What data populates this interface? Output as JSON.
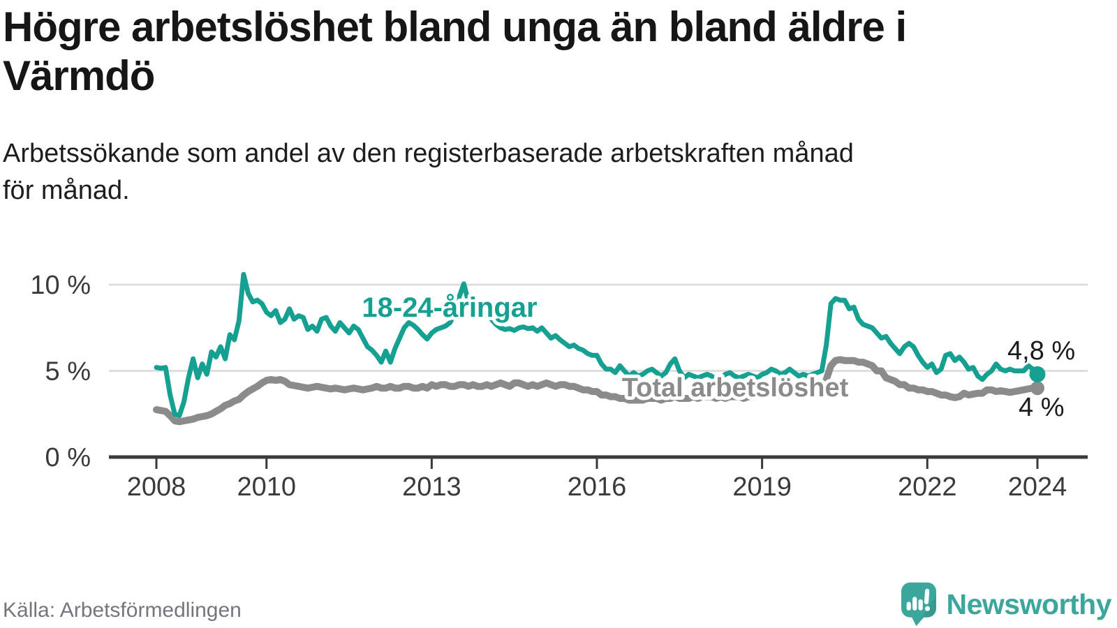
{
  "header": {
    "title_line1": "Högre arbetslöshet bland unga än bland äldre i",
    "title_line2": "Värmdö",
    "subtitle_line1": "Arbetssökande som andel av den registerbaserade arbetskraften månad",
    "subtitle_line2": "för månad."
  },
  "footer": {
    "source_label": "Källa: Arbetsförmedlingen",
    "brand_name": "Newsworthy",
    "brand_icon": "newsworthy-speech-bubble-bar-chart-icon",
    "brand_color": "#3ba69c"
  },
  "chart_data": {
    "type": "line",
    "title": "Högre arbetslöshet bland unga än bland äldre i Värmdö",
    "subtitle": "Arbetssökande som andel av den registerbaserade arbetskraften månad för månad.",
    "unit": "%",
    "x_start_year": 2008,
    "points_per_year": 12,
    "x_end": "2024-01",
    "ylim": [
      0,
      10.8
    ],
    "grid": "horizontal-only",
    "legend_position": "inline-labels",
    "x_ticks": [
      {
        "year": 2008,
        "label": "2008"
      },
      {
        "year": 2010,
        "label": "2010"
      },
      {
        "year": 2013,
        "label": "2013"
      },
      {
        "year": 2016,
        "label": "2016"
      },
      {
        "year": 2019,
        "label": "2019"
      },
      {
        "year": 2022,
        "label": "2022"
      },
      {
        "year": 2024,
        "label": "2024"
      }
    ],
    "y_ticks": [
      {
        "value": 10,
        "label": "10 %"
      },
      {
        "value": 5,
        "label": "5 %"
      },
      {
        "value": 0,
        "label": "0 %"
      }
    ],
    "series": [
      {
        "name": "18-24-åringar",
        "color": "#16a091",
        "end_label": "4,8 %",
        "end_value": 4.8,
        "values": [
          5.2,
          5.15,
          5.2,
          3.6,
          2.5,
          2.4,
          3.2,
          4.6,
          5.7,
          4.6,
          5.4,
          4.8,
          6.1,
          5.8,
          6.4,
          5.7,
          7.1,
          6.8,
          7.9,
          10.6,
          9.5,
          9.0,
          9.1,
          8.9,
          8.4,
          8.2,
          8.5,
          7.8,
          8.0,
          8.6,
          8.0,
          8.2,
          8.1,
          7.4,
          7.6,
          7.3,
          8.0,
          8.1,
          7.6,
          7.3,
          7.8,
          7.5,
          7.2,
          7.6,
          7.4,
          6.9,
          6.4,
          6.2,
          5.9,
          5.5,
          6.15,
          5.5,
          6.3,
          6.9,
          7.5,
          7.8,
          7.65,
          7.4,
          7.1,
          6.85,
          7.2,
          7.4,
          7.5,
          7.6,
          7.8,
          8.3,
          9.3,
          10.05,
          9.0,
          8.7,
          9.0,
          8.7,
          8.4,
          8.0,
          7.7,
          7.5,
          7.4,
          7.45,
          7.35,
          7.5,
          7.55,
          7.45,
          7.5,
          7.3,
          7.5,
          7.2,
          6.9,
          7.05,
          6.8,
          6.6,
          6.4,
          6.5,
          6.3,
          6.2,
          6.0,
          5.9,
          5.9,
          5.4,
          5.1,
          5.1,
          4.9,
          5.3,
          5.0,
          4.7,
          4.9,
          4.7,
          4.8,
          5.0,
          5.1,
          4.9,
          4.7,
          4.9,
          5.4,
          5.7,
          5.0,
          4.6,
          4.8,
          4.7,
          4.6,
          4.7,
          4.8,
          4.7,
          4.5,
          4.6,
          4.8,
          4.9,
          4.7,
          4.6,
          4.7,
          4.8,
          4.7,
          4.6,
          4.8,
          4.9,
          5.1,
          5.0,
          4.8,
          4.9,
          5.1,
          4.9,
          4.7,
          4.8,
          4.7,
          4.8,
          4.9,
          5.0,
          6.5,
          8.9,
          9.2,
          9.1,
          9.1,
          8.6,
          8.7,
          8.0,
          7.7,
          7.6,
          7.5,
          7.2,
          6.9,
          7.0,
          6.6,
          6.3,
          6.0,
          6.4,
          6.6,
          6.4,
          5.9,
          5.5,
          5.2,
          5.4,
          4.9,
          5.1,
          5.9,
          6.0,
          5.6,
          5.8,
          5.5,
          5.1,
          5.2,
          4.7,
          4.5,
          4.8,
          5.0,
          5.4,
          5.1,
          5.0,
          5.1,
          5.0,
          5.0,
          5.0,
          5.3,
          5.1,
          4.8
        ]
      },
      {
        "name": "Total arbetslöshet",
        "color": "#8b8b8b",
        "end_label": "4 %",
        "end_value": 4.0,
        "values": [
          2.75,
          2.7,
          2.65,
          2.4,
          2.1,
          2.05,
          2.1,
          2.15,
          2.2,
          2.3,
          2.35,
          2.4,
          2.5,
          2.65,
          2.8,
          3.0,
          3.1,
          3.25,
          3.35,
          3.6,
          3.8,
          3.95,
          4.1,
          4.3,
          4.45,
          4.5,
          4.45,
          4.5,
          4.4,
          4.2,
          4.15,
          4.1,
          4.05,
          4.0,
          4.05,
          4.1,
          4.05,
          4.0,
          3.95,
          4.0,
          3.95,
          3.9,
          3.95,
          4.0,
          3.95,
          3.9,
          3.95,
          4.0,
          4.1,
          4.0,
          4.0,
          4.1,
          4.0,
          4.0,
          4.1,
          4.1,
          4.0,
          4.0,
          4.1,
          4.0,
          4.2,
          4.1,
          4.2,
          4.2,
          4.1,
          4.1,
          4.2,
          4.2,
          4.1,
          4.2,
          4.1,
          4.1,
          4.2,
          4.1,
          4.2,
          4.3,
          4.2,
          4.1,
          4.3,
          4.3,
          4.2,
          4.1,
          4.2,
          4.1,
          4.2,
          4.3,
          4.2,
          4.1,
          4.2,
          4.2,
          4.1,
          4.1,
          4.0,
          3.9,
          3.9,
          3.8,
          3.8,
          3.6,
          3.6,
          3.5,
          3.5,
          3.4,
          3.4,
          3.3,
          3.3,
          3.3,
          3.3,
          3.4,
          3.4,
          3.4,
          3.3,
          3.4,
          3.4,
          3.5,
          3.4,
          3.4,
          3.4,
          3.5,
          3.4,
          3.5,
          3.5,
          3.5,
          3.4,
          3.5,
          3.4,
          3.5,
          3.5,
          3.5,
          3.4,
          3.5,
          3.5,
          3.6,
          3.5,
          3.6,
          3.6,
          3.6,
          3.6,
          3.7,
          3.6,
          3.7,
          3.7,
          3.7,
          3.7,
          3.8,
          3.9,
          4.0,
          4.5,
          5.3,
          5.6,
          5.65,
          5.6,
          5.6,
          5.6,
          5.5,
          5.5,
          5.4,
          5.3,
          5.0,
          5.0,
          4.6,
          4.5,
          4.4,
          4.2,
          4.2,
          4.0,
          4.0,
          3.9,
          3.9,
          3.8,
          3.8,
          3.7,
          3.6,
          3.6,
          3.5,
          3.45,
          3.5,
          3.7,
          3.6,
          3.65,
          3.7,
          3.7,
          3.9,
          3.9,
          3.8,
          3.85,
          3.8,
          3.75,
          3.8,
          3.85,
          3.9,
          3.95,
          4.0,
          4.0
        ]
      }
    ]
  }
}
